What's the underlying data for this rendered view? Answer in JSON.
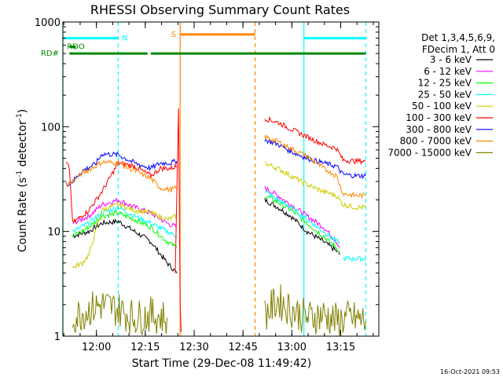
{
  "chart_data": {
    "type": "line",
    "title": "RHESSI Observing Summary Count Rates",
    "xlabel": "Start Time (29-Dec-08 11:49:42)",
    "ylabel_main": "Count Rate (s",
    "ylabel_sup1": "-1",
    "ylabel_mid": " detector",
    "ylabel_sup2": "-1",
    "ylabel_end": ")",
    "yscale": "log",
    "ylim": [
      1,
      1000
    ],
    "xlim_minutes": [
      0,
      97
    ],
    "y_ticks": [
      {
        "value": 1,
        "label": "1"
      },
      {
        "value": 10,
        "label": "10"
      },
      {
        "value": 100,
        "label": "100"
      },
      {
        "value": 1000,
        "label": "1000"
      }
    ],
    "x_ticks": [
      {
        "min": 10.3,
        "label": "12:00"
      },
      {
        "min": 25.3,
        "label": "12:15"
      },
      {
        "min": 40.3,
        "label": "12:30"
      },
      {
        "min": 55.3,
        "label": "12:45"
      },
      {
        "min": 70.3,
        "label": "13:00"
      },
      {
        "min": 85.3,
        "label": "13:15"
      }
    ],
    "legend_header": [
      "Det 1,3,4,5,6,9,",
      "FDecim 1, Att 0"
    ],
    "series": [
      {
        "name": "3 - 6 keV",
        "color": "#000000",
        "seg1": [
          [
            3,
            9
          ],
          [
            8,
            10
          ],
          [
            12,
            12
          ],
          [
            17,
            12.5
          ],
          [
            22,
            10
          ],
          [
            27,
            8
          ],
          [
            32,
            5
          ],
          [
            35,
            4
          ]
        ],
        "seg2": [
          [
            62,
            20
          ],
          [
            66,
            17
          ],
          [
            70,
            14
          ],
          [
            75,
            10
          ],
          [
            80,
            8
          ],
          [
            84,
            6.5
          ],
          [
            85,
            6
          ]
        ]
      },
      {
        "name": "6 - 12 keV",
        "color": "#ff00ff",
        "seg1": [
          [
            3,
            12
          ],
          [
            8,
            14
          ],
          [
            12,
            18
          ],
          [
            17,
            20
          ],
          [
            22,
            17
          ],
          [
            27,
            15
          ],
          [
            32,
            12
          ],
          [
            35,
            11
          ]
        ],
        "seg2": [
          [
            62,
            26
          ],
          [
            66,
            22
          ],
          [
            70,
            18
          ],
          [
            75,
            14
          ],
          [
            80,
            11
          ],
          [
            84,
            8
          ],
          [
            85,
            7
          ]
        ]
      },
      {
        "name": "12 - 25 keV",
        "color": "#00ff00",
        "seg1": [
          [
            3,
            9
          ],
          [
            8,
            11
          ],
          [
            12,
            14
          ],
          [
            17,
            15
          ],
          [
            22,
            13
          ],
          [
            27,
            11
          ],
          [
            32,
            8
          ],
          [
            35,
            7
          ]
        ],
        "seg2": [
          [
            62,
            22
          ],
          [
            66,
            19
          ],
          [
            70,
            16
          ],
          [
            75,
            12
          ],
          [
            80,
            9
          ],
          [
            84,
            7
          ],
          [
            85,
            6.5
          ]
        ]
      },
      {
        "name": "25 - 50 keV",
        "color": "#00ffff",
        "seg1": [
          [
            3,
            10
          ],
          [
            8,
            12
          ],
          [
            12,
            15
          ],
          [
            17,
            17
          ],
          [
            22,
            14
          ],
          [
            27,
            12
          ],
          [
            32,
            10
          ],
          [
            35,
            9
          ]
        ],
        "seg2": [
          [
            62,
            24
          ],
          [
            66,
            20
          ],
          [
            70,
            17
          ],
          [
            75,
            13
          ],
          [
            80,
            10
          ],
          [
            84,
            8
          ],
          [
            85,
            8
          ]
        ],
        "seg3": [
          [
            86,
            5.5
          ],
          [
            90,
            5.5
          ],
          [
            93,
            5.5
          ]
        ]
      },
      {
        "name": "50 - 100 keV",
        "color": "#cccc00",
        "seg1": [
          [
            3,
            4.5
          ],
          [
            6,
            5
          ],
          [
            8,
            6
          ],
          [
            12,
            16
          ],
          [
            17,
            18
          ],
          [
            22,
            16
          ],
          [
            27,
            15
          ],
          [
            32,
            13
          ],
          [
            35,
            14
          ]
        ],
        "seg2": [
          [
            62,
            45
          ],
          [
            66,
            40
          ],
          [
            70,
            34
          ],
          [
            75,
            28
          ],
          [
            80,
            24
          ],
          [
            84,
            22
          ],
          [
            86,
            18
          ],
          [
            90,
            17
          ],
          [
            93,
            17
          ]
        ]
      },
      {
        "name": "100 - 300 keV",
        "color": "#ff0000",
        "seg1": [
          [
            1,
            45
          ],
          [
            2,
            40
          ],
          [
            3,
            12
          ],
          [
            8,
            16
          ],
          [
            12,
            24
          ],
          [
            17,
            45
          ],
          [
            22,
            42
          ],
          [
            27,
            34
          ],
          [
            30,
            40
          ],
          [
            33,
            40
          ],
          [
            35,
            42
          ]
        ],
        "seg2": [
          [
            62,
            120
          ],
          [
            66,
            110
          ],
          [
            70,
            95
          ],
          [
            75,
            80
          ],
          [
            80,
            68
          ],
          [
            84,
            62
          ],
          [
            86,
            48
          ],
          [
            90,
            47
          ],
          [
            93,
            47
          ]
        ]
      },
      {
        "name": "300 - 800 keV",
        "color": "#0000ff",
        "seg1": [
          [
            1,
            28
          ],
          [
            3,
            30
          ],
          [
            6,
            38
          ],
          [
            10,
            44
          ],
          [
            12,
            55
          ],
          [
            17,
            54
          ],
          [
            22,
            45
          ],
          [
            27,
            40
          ],
          [
            30,
            45
          ],
          [
            33,
            45
          ],
          [
            35,
            47
          ]
        ],
        "seg2": [
          [
            62,
            75
          ],
          [
            66,
            68
          ],
          [
            70,
            58
          ],
          [
            75,
            50
          ],
          [
            80,
            45
          ],
          [
            84,
            42
          ],
          [
            86,
            35
          ],
          [
            90,
            34
          ],
          [
            93,
            34
          ]
        ]
      },
      {
        "name": "800 - 7000 keV",
        "color": "#ff8800",
        "seg1": [
          [
            1,
            28
          ],
          [
            3,
            30
          ],
          [
            6,
            36
          ],
          [
            10,
            42
          ],
          [
            12,
            46
          ],
          [
            17,
            45
          ],
          [
            22,
            38
          ],
          [
            27,
            32
          ],
          [
            30,
            26
          ],
          [
            33,
            25
          ],
          [
            35,
            26
          ]
        ],
        "seg2": [
          [
            62,
            80
          ],
          [
            66,
            72
          ],
          [
            70,
            62
          ],
          [
            75,
            52
          ],
          [
            80,
            40
          ],
          [
            84,
            34
          ],
          [
            86,
            23
          ],
          [
            90,
            22
          ],
          [
            93,
            22
          ]
        ]
      },
      {
        "name": "7000 - 15000 keV",
        "color": "#808000",
        "seg1": [
          [
            3,
            1.5
          ],
          [
            8,
            1.8
          ],
          [
            12,
            2
          ],
          [
            17,
            1.8
          ],
          [
            22,
            1.5
          ],
          [
            27,
            1.6
          ],
          [
            32,
            1.5
          ]
        ],
        "seg2": [
          [
            62,
            1.6
          ],
          [
            66,
            2.2
          ],
          [
            70,
            1.8
          ],
          [
            75,
            1.5
          ],
          [
            80,
            1.6
          ],
          [
            84,
            1.4
          ],
          [
            88,
            1.5
          ],
          [
            93,
            1.4
          ]
        ]
      }
    ],
    "flag_bars": [
      {
        "label": "N",
        "color": "#00ffff",
        "value": 700,
        "segs": [
          [
            0,
            17
          ],
          [
            74,
            93
          ]
        ],
        "label_at": 19
      },
      {
        "label": "S",
        "color": "#ff8800",
        "value": 760,
        "segs": [
          [
            36,
            59
          ]
        ],
        "label_at": 34
      },
      {
        "label": "RDO",
        "color": "#008800",
        "value": 580,
        "segs": [
          [
            2,
            4
          ]
        ],
        "label_at": 4
      },
      {
        "label": "RD#",
        "color": "#008800",
        "value": 500,
        "segs": [
          [
            2,
            26
          ],
          [
            27,
            93
          ]
        ],
        "label_at": -4
      }
    ],
    "vlines": [
      {
        "min": 0,
        "color": "#00ffff",
        "dash": false
      },
      {
        "min": 17,
        "color": "#00ffff",
        "dash": true
      },
      {
        "min": 36,
        "color": "#ff8800",
        "dash": false
      },
      {
        "min": 59,
        "color": "#ff8800",
        "dash": true
      },
      {
        "min": 74,
        "color": "#00ffff",
        "dash": false
      },
      {
        "min": 93,
        "color": "#00ffff",
        "dash": true
      }
    ],
    "timestamp": "16-Oct-2021 09:53"
  }
}
